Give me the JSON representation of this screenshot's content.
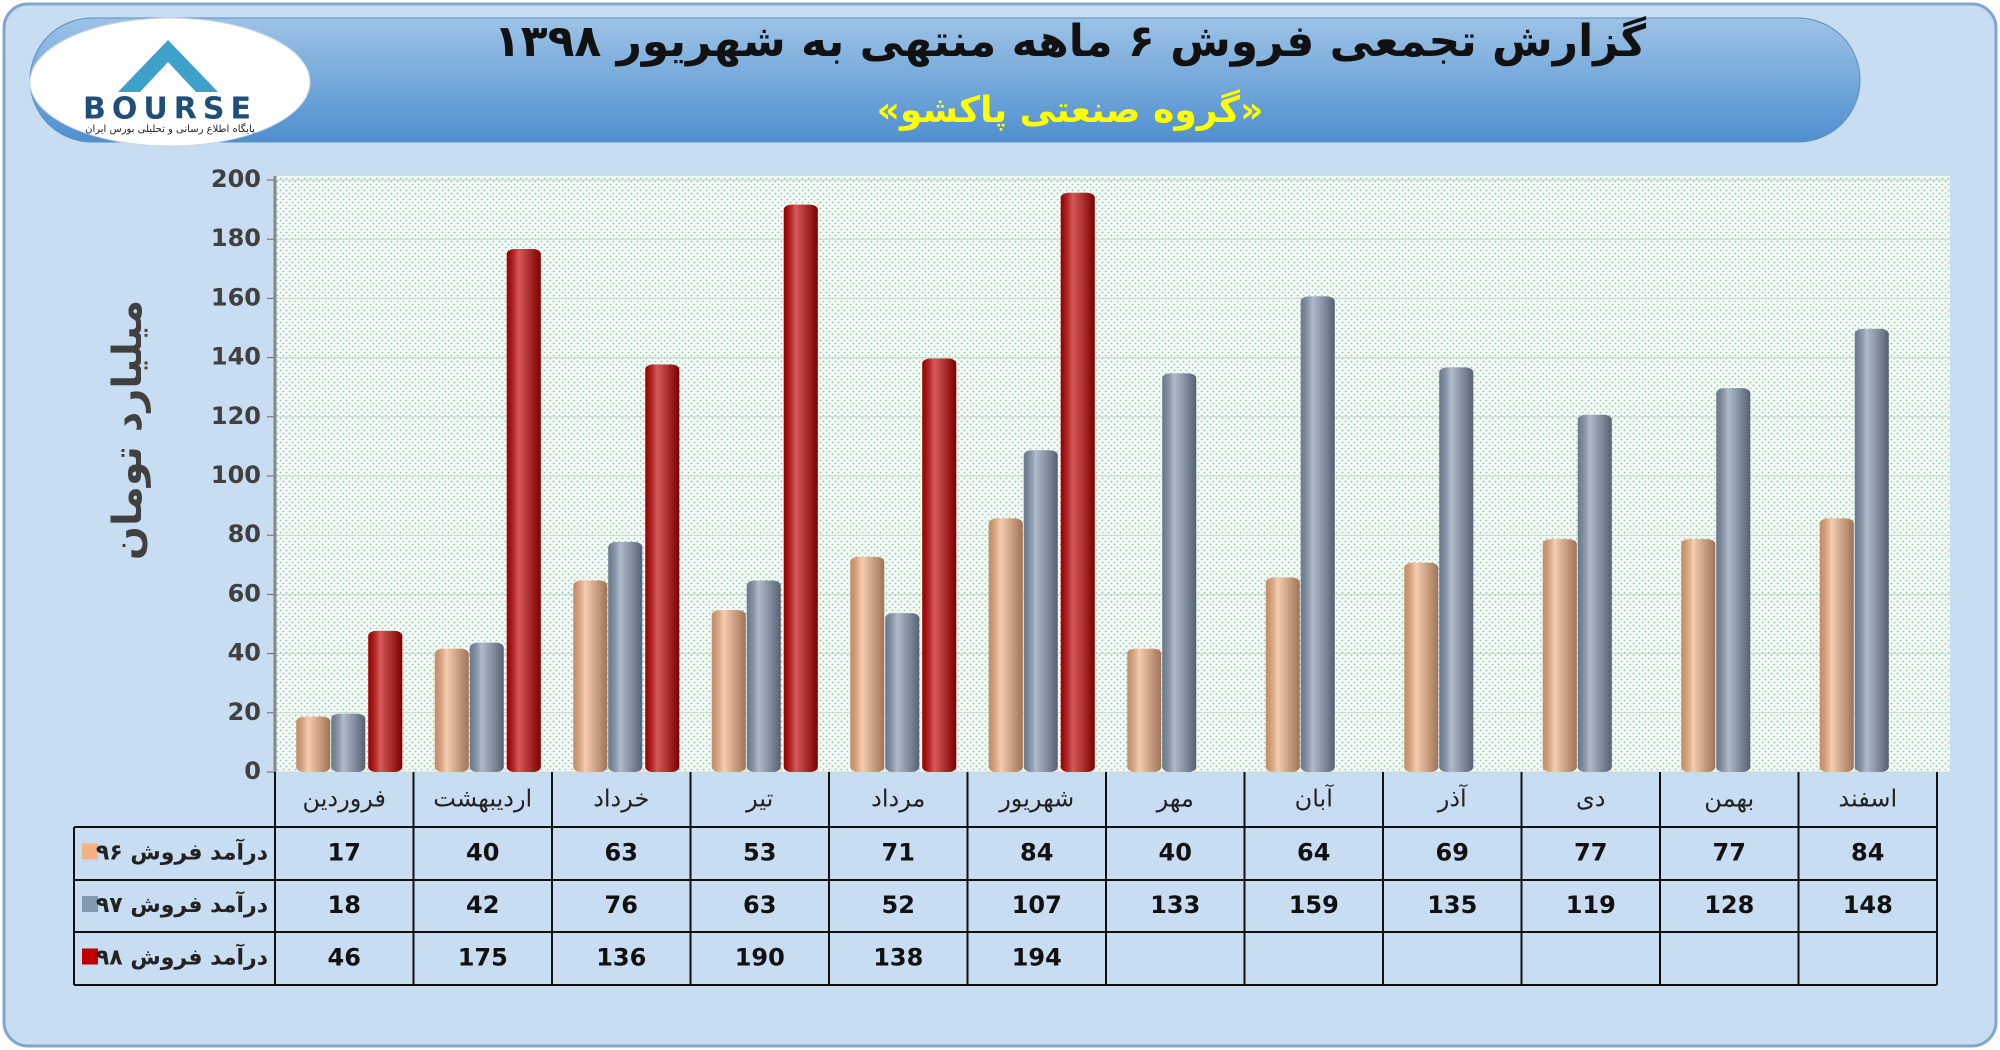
{
  "logo": {
    "text": "BOURSE",
    "tagline": "پایگاه اطلاع رسانی و تحلیلی بورس ایران"
  },
  "chart_data": {
    "type": "bar",
    "title": "گزارش تجمعی فروش ۶ ماهه منتهی به شهریور ۱۳۹۸",
    "subtitle": "«گروه صنعتی پاکشو»",
    "y_label": "میلیارد تومان",
    "categories": [
      "فروردین",
      "اردیبهشت",
      "خرداد",
      "تیر",
      "مرداد",
      "شهریور",
      "مهر",
      "آبان",
      "آذر",
      "دی",
      "بهمن",
      "اسفند"
    ],
    "series": [
      {
        "name": "درآمد فروش ۹۶",
        "color": "#f4b183",
        "values": [
          17,
          40,
          63,
          53,
          71,
          84,
          40,
          64,
          69,
          77,
          77,
          84
        ]
      },
      {
        "name": "درآمد فروش ۹۷",
        "color": "#8497b0",
        "values": [
          18,
          42,
          76,
          63,
          52,
          107,
          133,
          159,
          135,
          119,
          128,
          148
        ]
      },
      {
        "name": "درآمد فروش ۹۸",
        "color": "#c00000",
        "values": [
          46,
          175,
          136,
          190,
          138,
          194,
          null,
          null,
          null,
          null,
          null,
          null
        ]
      }
    ],
    "ylim": [
      0,
      200
    ],
    "yticks": [
      0,
      20,
      40,
      60,
      80,
      100,
      120,
      140,
      160,
      180,
      200
    ],
    "grid": true
  }
}
